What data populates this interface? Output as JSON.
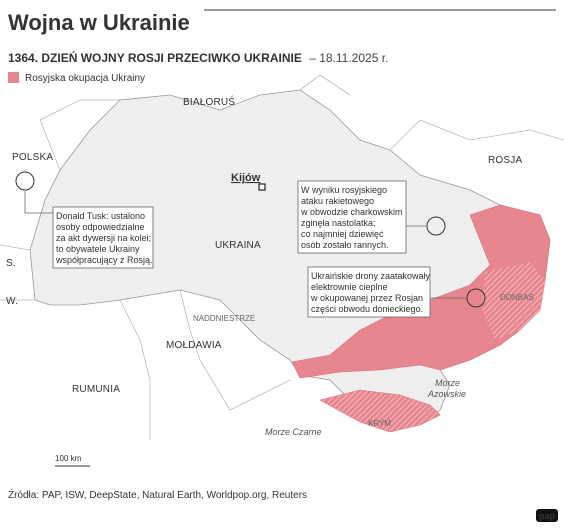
{
  "header": {
    "title": "Wojna w Ukrainie",
    "subtitle_bold": "1364. DZIEŃ WOJNY ROSJI PRZECIWKO UKRAINIE",
    "subtitle_date": "– 18.11.2025 r."
  },
  "legend": {
    "label": "Rosyjska okupacja Ukrainy"
  },
  "map": {
    "labels": {
      "belarus": "BIAŁORUŚ",
      "poland": "POLSKA",
      "russia": "ROSJA",
      "kyiv": "Kijów",
      "ukraine": "UKRAINA",
      "slovakia": "S.",
      "hungary": "W.",
      "transnistria": "NADDNIESTRZE",
      "moldova": "MOŁDAWIA",
      "romania": "RUMUNIA",
      "donbas": "DONBAS",
      "crimea": "KRYM",
      "azov_sea": [
        "Morze",
        "Azowskie"
      ],
      "black_sea": "Morze Czarne"
    },
    "scale": "100 km"
  },
  "annotations": [
    {
      "lines": [
        "Donald Tusk: ustalono",
        "osoby odpowiedzialne",
        "za akt dywersji na kolei;",
        "to obywatele Ukrainy",
        "współpracujący z Rosją."
      ]
    },
    {
      "lines": [
        "W wyniku rosyjskiego",
        "ataku rakietowego",
        "w obwodzie charkowskim",
        "zginęła nastolatka;",
        "co najmniej dziewięć",
        "osób zostało rannych."
      ]
    },
    {
      "lines": [
        "Ukraińskie drony zaatakowały",
        "elektrownie cieplne",
        "w okupowanej przez Rosjan",
        "części obwodu donieckiego."
      ]
    }
  ],
  "footer": {
    "sources": "Źródła: PAP, ISW, DeepState, Natural Earth, Worldpop.org, Reuters",
    "logo": "pap"
  }
}
